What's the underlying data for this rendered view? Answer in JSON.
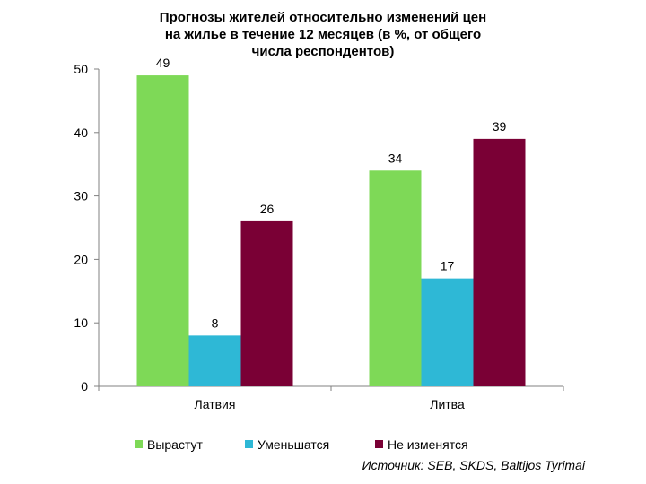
{
  "chart_data": {
    "type": "bar",
    "title_lines": [
      "Прогнозы жителей относительно изменений цен",
      "на жилье в течение 12 месяцев (в %, от общего",
      "числа респондентов)"
    ],
    "categories": [
      "Латвия",
      "Литва"
    ],
    "series": [
      {
        "name": "Вырастут",
        "color": "#7ED957",
        "values": [
          49,
          34
        ]
      },
      {
        "name": "Уменьшатся",
        "color": "#2EB8D6",
        "values": [
          8,
          17
        ]
      },
      {
        "name": "Не изменятся",
        "color": "#7A0035",
        "values": [
          26,
          39
        ]
      }
    ],
    "data_labels": [
      [
        "49",
        "34"
      ],
      [
        "8",
        "17"
      ],
      [
        "26",
        "39"
      ]
    ],
    "ylim": [
      0,
      50
    ],
    "yticks": [
      0,
      10,
      20,
      30,
      40,
      50
    ],
    "grid": false,
    "legend_position": "bottom"
  },
  "source": "Источник: SEB, SKDS, Baltijos Tyrimai"
}
